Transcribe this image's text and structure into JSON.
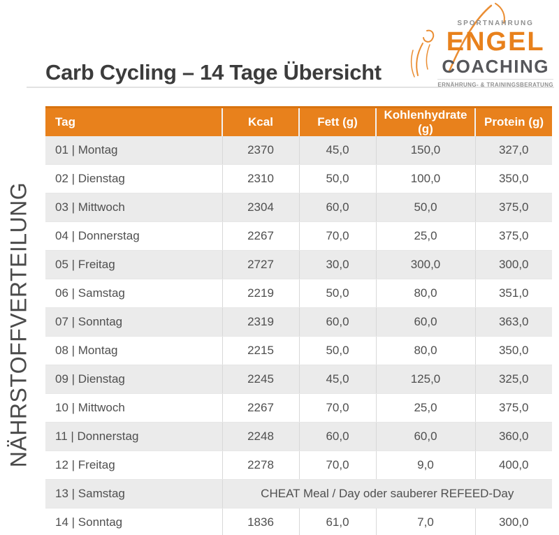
{
  "page": {
    "title": "Carb Cycling – 14 Tage Übersicht",
    "side_label": "NÄHRSTOFFVERTEILUNG"
  },
  "logo": {
    "top": "SPORTNAHRUNG",
    "name": "ENGEL",
    "sub": "COACHING",
    "tagline": "ERNÄHRUNG- & TRAININGSBERATUNG"
  },
  "colors": {
    "accent_orange": "#E8811C",
    "header_top_edge": "#D9730F",
    "row_alt_gray": "#EBEBEB",
    "title_text": "#3C3C3C",
    "body_text": "#4F4F4F",
    "logo_gray": "#8F8F8F",
    "coaching_gray": "#55565A"
  },
  "table": {
    "columns": [
      "Tag",
      "Kcal",
      "Fett (g)",
      "Kohlenhydrate (g)",
      "Protein (g)"
    ],
    "rows": [
      {
        "tag": "01 | Montag",
        "kcal": "2370",
        "fett": "45,0",
        "kh": "150,0",
        "protein": "327,0"
      },
      {
        "tag": "02 | Dienstag",
        "kcal": "2310",
        "fett": "50,0",
        "kh": "100,0",
        "protein": "350,0"
      },
      {
        "tag": "03 | Mittwoch",
        "kcal": "2304",
        "fett": "60,0",
        "kh": "50,0",
        "protein": "375,0"
      },
      {
        "tag": "04 | Donnerstag",
        "kcal": "2267",
        "fett": "70,0",
        "kh": "25,0",
        "protein": "375,0"
      },
      {
        "tag": "05 | Freitag",
        "kcal": "2727",
        "fett": "30,0",
        "kh": "300,0",
        "protein": "300,0"
      },
      {
        "tag": "06 | Samstag",
        "kcal": "2219",
        "fett": "50,0",
        "kh": "80,0",
        "protein": "351,0"
      },
      {
        "tag": "07 | Sonntag",
        "kcal": "2319",
        "fett": "60,0",
        "kh": "60,0",
        "protein": "363,0"
      },
      {
        "tag": "08 | Montag",
        "kcal": "2215",
        "fett": "50,0",
        "kh": "80,0",
        "protein": "350,0"
      },
      {
        "tag": "09 | Dienstag",
        "kcal": "2245",
        "fett": "45,0",
        "kh": "125,0",
        "protein": "325,0"
      },
      {
        "tag": "10 | Mittwoch",
        "kcal": "2267",
        "fett": "70,0",
        "kh": "25,0",
        "protein": "375,0"
      },
      {
        "tag": "11 | Donnerstag",
        "kcal": "2248",
        "fett": "60,0",
        "kh": "60,0",
        "protein": "360,0"
      },
      {
        "tag": "12 | Freitag",
        "kcal": "2278",
        "fett": "70,0",
        "kh": "9,0",
        "protein": "400,0"
      },
      {
        "tag": "13 | Samstag",
        "merged": "CHEAT Meal / Day oder sauberer REFEED-Day"
      },
      {
        "tag": "14 | Sonntag",
        "kcal": "1836",
        "fett": "61,0",
        "kh": "7,0",
        "protein": "300,0"
      }
    ]
  }
}
